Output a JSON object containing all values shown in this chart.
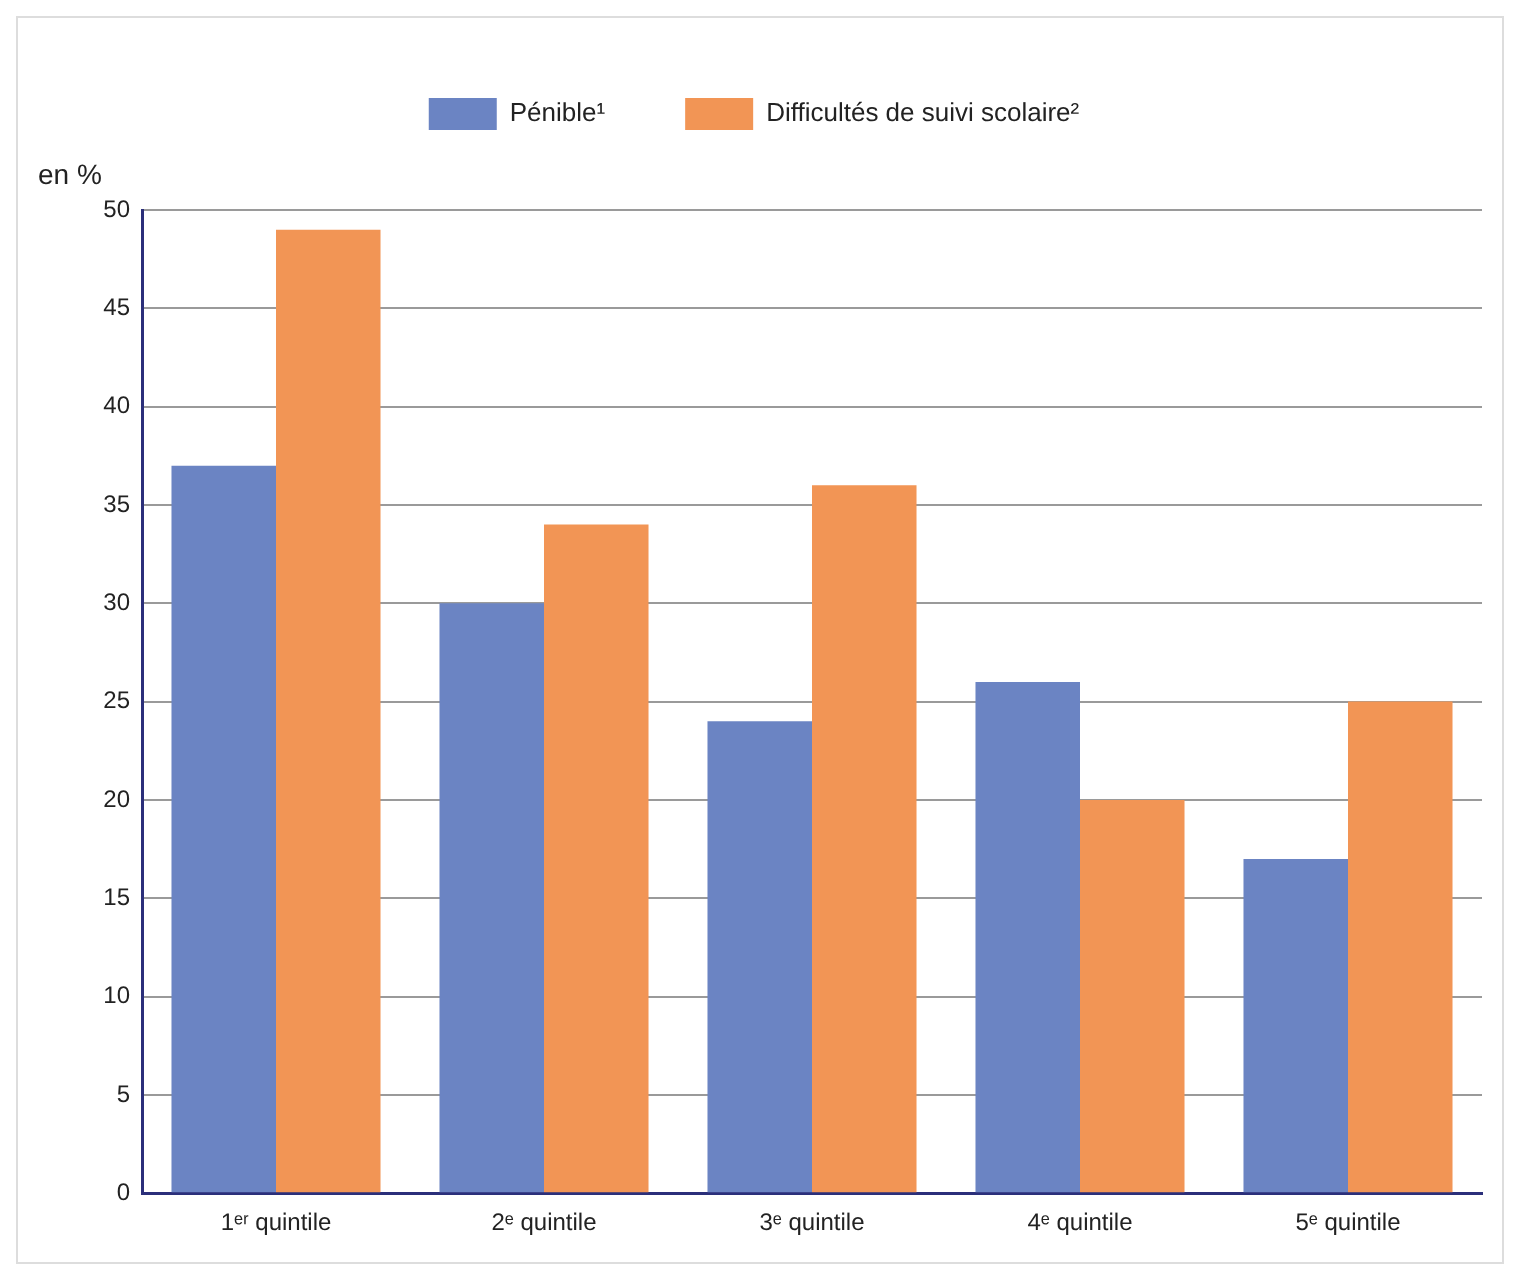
{
  "chart_data": {
    "type": "bar",
    "ylabel": "en %",
    "categories": [
      "1ᵉʳ quintile",
      "2ᵉ quintile",
      "3ᵉ quintile",
      "4ᵉ quintile",
      "5ᵉ quintile"
    ],
    "series": [
      {
        "name": "Pénible¹",
        "color": "#6b84c3",
        "values": [
          37,
          30,
          24,
          26,
          17
        ]
      },
      {
        "name": "Difficultés de suivi scolaire²",
        "color": "#f29555",
        "values": [
          49,
          34,
          36,
          20,
          25
        ]
      }
    ],
    "ylim": [
      0,
      50
    ],
    "yticks": [
      0,
      5,
      10,
      15,
      20,
      25,
      30,
      35,
      40,
      45,
      50
    ],
    "grid": "y",
    "legend": "top"
  }
}
